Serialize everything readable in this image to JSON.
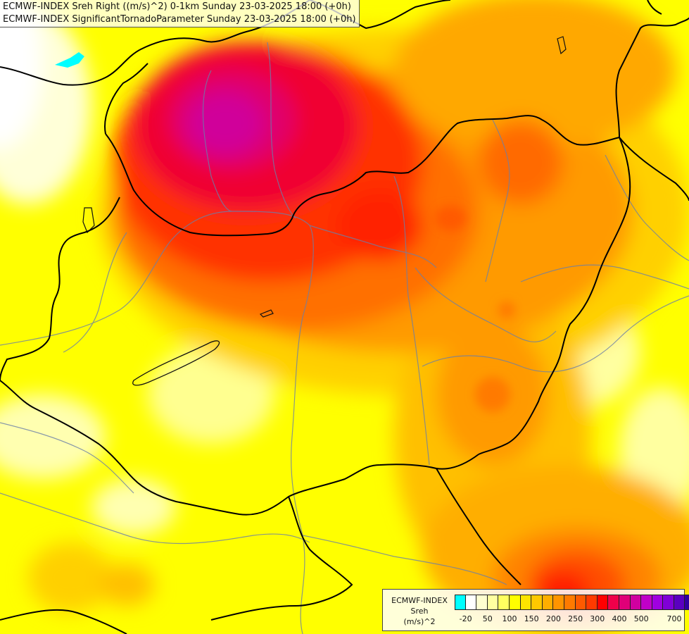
{
  "title": {
    "line1": "ECMWF-INDEX Sreh Right ((m/s)^2) 0-1km Sunday 23-03-2025 18:00 (+0h)",
    "line2": "ECMWF-INDEX SignificantTornadoParameter Sunday 23-03-2025 18:00 (+0h)"
  },
  "legend": {
    "name_line1": "ECMWF-INDEX",
    "name_line2": "Sreh",
    "unit": "(m/s)^2",
    "colors": [
      "#00ffff",
      "#ffffff",
      "#ffffd0",
      "#ffffa0",
      "#ffff60",
      "#ffff00",
      "#ffe400",
      "#ffc800",
      "#ffae00",
      "#ff9400",
      "#ff7a00",
      "#ff5a00",
      "#ff3a00",
      "#ff0000",
      "#f0004a",
      "#e00078",
      "#d000a0",
      "#c000c8",
      "#a000e0",
      "#8000d8",
      "#5a00c0",
      "#3000a0",
      "#10007a"
    ],
    "tick_labels": [
      "-20",
      "50",
      "100",
      "150",
      "200",
      "250",
      "300",
      "400",
      "500",
      "700"
    ]
  },
  "map_icons": {
    "borders": "country-border-lines",
    "rivers": "river-lines",
    "lakes": "lake-shapes"
  }
}
